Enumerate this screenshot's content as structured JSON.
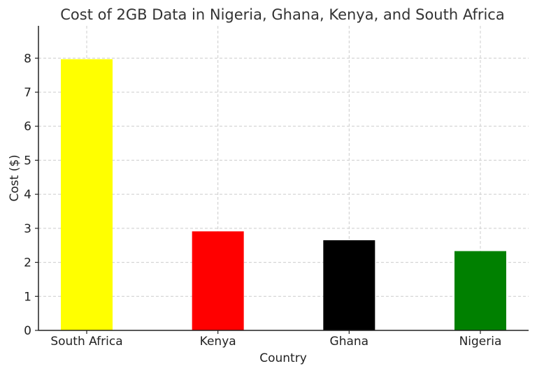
{
  "chart_data": {
    "type": "bar",
    "title": "Cost of 2GB Data in Nigeria, Ghana, Kenya, and South Africa",
    "xlabel": "Country",
    "ylabel": "Cost ($)",
    "categories": [
      "South Africa",
      "Kenya",
      "Ghana",
      "Nigeria"
    ],
    "values": [
      7.97,
      2.91,
      2.65,
      2.33
    ],
    "colors": [
      "#ffff00",
      "#ff0000",
      "#000000",
      "#008000"
    ],
    "ylim": [
      0,
      8.95
    ],
    "yticks": [
      0,
      1,
      2,
      3,
      4,
      5,
      6,
      7,
      8
    ],
    "grid": true,
    "legend": "none"
  }
}
